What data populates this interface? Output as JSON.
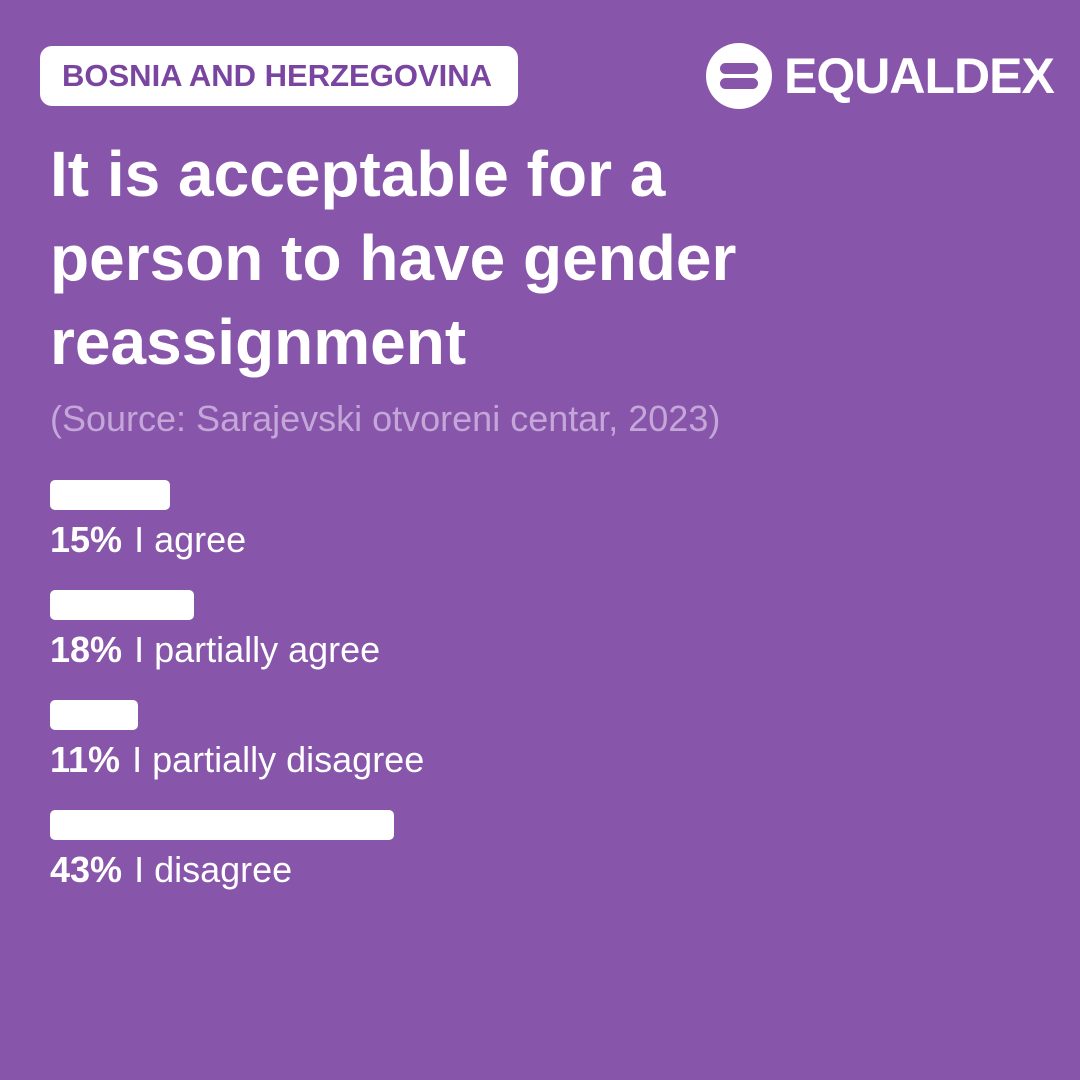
{
  "header": {
    "tag": "BOSNIA AND HERZEGOVINA",
    "logo": "EQUALDEX"
  },
  "chart_data": {
    "type": "bar",
    "orientation": "horizontal",
    "title": "It is acceptable for a person to have gender reassignment",
    "subtitle": "(Source: Sarajevski otvoreni centar, 2023)",
    "categories": [
      "I agree",
      "I partially agree",
      "I partially disagree",
      "I disagree"
    ],
    "values": [
      15,
      18,
      11,
      43
    ],
    "value_labels": [
      "15%",
      "18%",
      "11%",
      "43%"
    ],
    "color": "#ffffff"
  }
}
